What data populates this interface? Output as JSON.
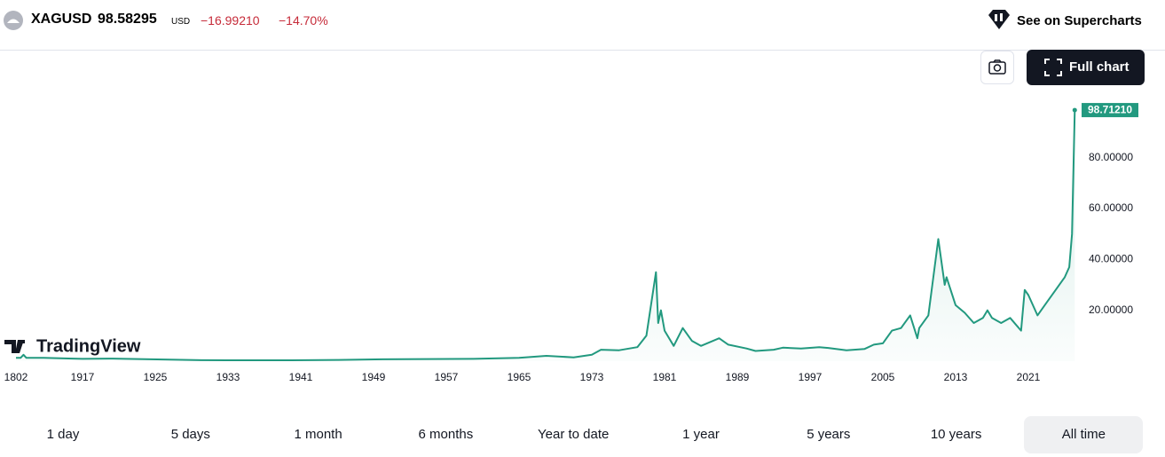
{
  "header": {
    "symbol": "XAGUSD",
    "price": "98.58295",
    "currency": "USD",
    "change": "−16.99210",
    "change_percent": "−14.70%",
    "supercharts_link": "See on Supercharts"
  },
  "full_chart_button": "Full chart",
  "logo": "TradingView",
  "ranges": [
    "1 day",
    "5 days",
    "1 month",
    "6 months",
    "Year to date",
    "1 year",
    "5 years",
    "10 years",
    "All time"
  ],
  "selected_range": "All time",
  "chart_data": {
    "type": "line",
    "x": [
      1802,
      1810,
      1815,
      1820,
      1850,
      1900,
      1917,
      1920,
      1930,
      1933,
      1940,
      1945,
      1950,
      1960,
      1965,
      1968,
      1971,
      1973,
      1974,
      1976,
      1978,
      1979,
      1980.05,
      1980.3,
      1980.6,
      1981,
      1982,
      1983,
      1984,
      1985,
      1987,
      1988,
      1990,
      1991,
      1993,
      1994,
      1996,
      1998,
      1999,
      2001,
      2003,
      2004,
      2005,
      2006,
      2007,
      2008,
      2008.8,
      2009,
      2010,
      2011.1,
      2011.8,
      2012,
      2013,
      2014,
      2015,
      2016,
      2016.5,
      2017,
      2018,
      2019,
      2020.2,
      2020.6,
      2021,
      2022,
      2023,
      2024,
      2024.8,
      2025,
      2025.5,
      2025.8,
      2026.1
    ],
    "series": [
      {
        "name": "XAGUSD",
        "color": "#22997f",
        "values": [
          1.3,
          1.3,
          2.5,
          1.3,
          1.3,
          1.0,
          0.9,
          1.0,
          0.4,
          0.35,
          0.35,
          0.5,
          0.75,
          0.91,
          1.29,
          2.1,
          1.5,
          2.5,
          4.5,
          4.3,
          5.5,
          10,
          35,
          15,
          20,
          12,
          6,
          13,
          8,
          6,
          9,
          6.5,
          5,
          4,
          4.5,
          5.3,
          5,
          5.5,
          5.2,
          4.3,
          4.8,
          6.5,
          7,
          12,
          13,
          18,
          9,
          13,
          18,
          48,
          30,
          33,
          22,
          19,
          15,
          17,
          20,
          17,
          15,
          17,
          12,
          28,
          26,
          18,
          23,
          28,
          32,
          33,
          37,
          50,
          98.7121
        ],
        "value_labels": [
          null,
          null,
          null,
          null,
          null,
          null,
          null,
          null,
          null,
          null,
          null,
          null,
          null,
          null,
          null,
          null,
          null,
          null,
          null,
          null,
          null,
          null,
          null,
          null,
          null,
          null,
          null,
          null,
          null,
          null,
          null,
          null,
          null,
          null,
          null,
          null,
          null,
          null,
          null,
          null,
          null,
          null,
          null,
          null,
          null,
          null,
          null,
          null,
          null,
          null,
          null,
          null,
          null,
          null,
          null,
          null,
          null,
          null,
          null,
          null,
          null,
          null,
          null,
          null,
          null,
          null,
          null,
          null,
          null,
          null,
          "98.71210"
        ]
      }
    ],
    "xlim": [
      1802,
      2026.1
    ],
    "xticks": [
      1802,
      1917,
      1925,
      1933,
      1941,
      1949,
      1957,
      1965,
      1973,
      1981,
      1989,
      1997,
      2005,
      2013,
      2021
    ],
    "ylim": [
      0,
      110.6
    ],
    "yticks": [
      {
        "value": 20,
        "label": "20.00000"
      },
      {
        "value": 40,
        "label": "40.00000"
      },
      {
        "value": 60,
        "label": "60.00000"
      },
      {
        "value": 80,
        "label": "80.00000"
      }
    ]
  }
}
